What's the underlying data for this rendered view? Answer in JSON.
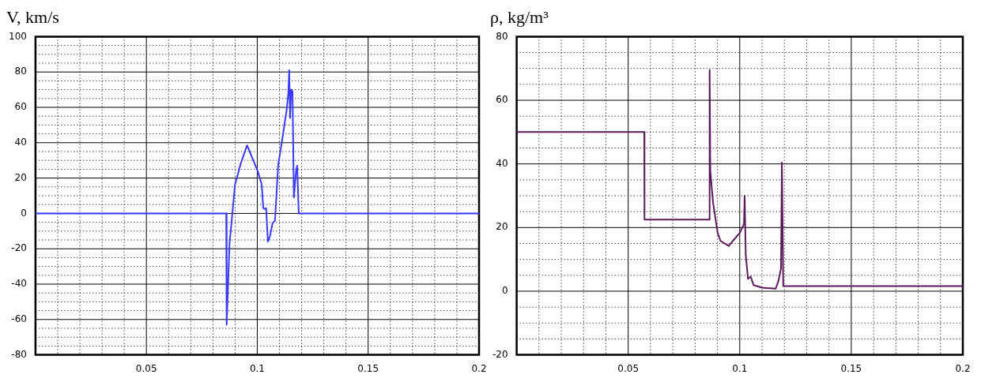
{
  "chart_data": [
    {
      "type": "line",
      "title": "V, km/s",
      "xlim": [
        0,
        0.2
      ],
      "ylim": [
        -80,
        100
      ],
      "grid": true,
      "marker": "none",
      "xticks": [
        {
          "value": 0.01,
          "label": null
        },
        {
          "value": 0.02,
          "label": null
        },
        {
          "value": 0.03,
          "label": null
        },
        {
          "value": 0.04,
          "label": null
        },
        0.05,
        {
          "value": 0.06,
          "label": null
        },
        {
          "value": 0.07,
          "label": null
        },
        {
          "value": 0.08,
          "label": null
        },
        {
          "value": 0.09,
          "label": null
        },
        0.1,
        {
          "value": 0.11,
          "label": null
        },
        {
          "value": 0.12,
          "label": null
        },
        {
          "value": 0.13,
          "label": null
        },
        {
          "value": 0.14,
          "label": null
        },
        0.15,
        {
          "value": 0.16,
          "label": null
        },
        {
          "value": 0.17,
          "label": null
        },
        {
          "value": 0.18,
          "label": null
        },
        {
          "value": 0.19,
          "label": null
        },
        0.2
      ],
      "yticks": [
        -80,
        {
          "value": -75,
          "label": null
        },
        {
          "value": -70,
          "label": null
        },
        {
          "value": -65,
          "label": null
        },
        -60,
        {
          "value": -55,
          "label": null
        },
        {
          "value": -50,
          "label": null
        },
        {
          "value": -45,
          "label": null
        },
        -40,
        {
          "value": -35,
          "label": null
        },
        {
          "value": -30,
          "label": null
        },
        {
          "value": -25,
          "label": null
        },
        -20,
        {
          "value": -15,
          "label": null
        },
        {
          "value": -10,
          "label": null
        },
        {
          "value": -5,
          "label": null
        },
        0,
        {
          "value": 5,
          "label": null
        },
        {
          "value": 10,
          "label": null
        },
        {
          "value": 15,
          "label": null
        },
        20,
        {
          "value": 25,
          "label": null
        },
        {
          "value": 30,
          "label": null
        },
        {
          "value": 35,
          "label": null
        },
        40,
        {
          "value": 45,
          "label": null
        },
        {
          "value": 50,
          "label": null
        },
        {
          "value": 55,
          "label": null
        },
        60,
        {
          "value": 65,
          "label": null
        },
        {
          "value": 70,
          "label": null
        },
        {
          "value": 75,
          "label": null
        },
        80,
        {
          "value": 85,
          "label": null
        },
        {
          "value": 90,
          "label": null
        },
        {
          "value": 95,
          "label": null
        },
        100
      ],
      "series": [
        {
          "color": "#3a3aff",
          "x": [
            0.0,
            0.086,
            0.0862,
            0.0875,
            0.09,
            0.0925,
            0.0954,
            0.1002,
            0.102,
            0.1027,
            0.1034,
            0.104,
            0.1048,
            0.1057,
            0.1069,
            0.108,
            0.1094,
            0.1114,
            0.1133,
            0.114,
            0.1144,
            0.1148,
            0.1153,
            0.1159,
            0.1165,
            0.1175,
            0.118,
            0.1187,
            0.2
          ],
          "values": [
            0,
            0,
            -63,
            -17,
            16.5,
            28,
            38.5,
            24,
            16.5,
            3,
            2.5,
            3,
            -16,
            -13,
            -5.6,
            -4,
            27,
            43,
            59,
            68,
            81,
            54,
            70,
            69,
            9,
            24,
            27,
            0,
            0
          ]
        }
      ]
    },
    {
      "type": "line",
      "title": "ρ, kg/m³",
      "xlim": [
        0,
        0.2
      ],
      "ylim": [
        -20,
        80
      ],
      "grid": true,
      "marker": "none",
      "xticks": [
        {
          "value": 0.01,
          "label": null
        },
        {
          "value": 0.02,
          "label": null
        },
        {
          "value": 0.03,
          "label": null
        },
        {
          "value": 0.04,
          "label": null
        },
        0.05,
        {
          "value": 0.06,
          "label": null
        },
        {
          "value": 0.07,
          "label": null
        },
        {
          "value": 0.08,
          "label": null
        },
        {
          "value": 0.09,
          "label": null
        },
        0.1,
        {
          "value": 0.11,
          "label": null
        },
        {
          "value": 0.12,
          "label": null
        },
        {
          "value": 0.13,
          "label": null
        },
        {
          "value": 0.14,
          "label": null
        },
        0.15,
        {
          "value": 0.16,
          "label": null
        },
        {
          "value": 0.17,
          "label": null
        },
        {
          "value": 0.18,
          "label": null
        },
        {
          "value": 0.19,
          "label": null
        },
        0.2
      ],
      "yticks": [
        -20,
        {
          "value": -15,
          "label": null
        },
        {
          "value": -10,
          "label": null
        },
        {
          "value": -5,
          "label": null
        },
        0,
        {
          "value": 5,
          "label": null
        },
        {
          "value": 10,
          "label": null
        },
        {
          "value": 15,
          "label": null
        },
        20,
        {
          "value": 25,
          "label": null
        },
        {
          "value": 30,
          "label": null
        },
        {
          "value": 35,
          "label": null
        },
        40,
        {
          "value": 45,
          "label": null
        },
        {
          "value": 50,
          "label": null
        },
        {
          "value": 55,
          "label": null
        },
        60,
        {
          "value": 65,
          "label": null
        },
        {
          "value": 70,
          "label": null
        },
        {
          "value": 75,
          "label": null
        },
        80
      ],
      "series": [
        {
          "color": "#5c1a5c",
          "x": [
            0.0,
            0.0572,
            0.0573,
            0.0863,
            0.0865,
            0.0868,
            0.088,
            0.0901,
            0.0914,
            0.0951,
            0.0969,
            0.1,
            0.1019,
            0.1022,
            0.1027,
            0.1037,
            0.1049,
            0.1062,
            0.11,
            0.1161,
            0.1173,
            0.1185,
            0.1189,
            0.1195,
            0.2
          ],
          "values": [
            50,
            50,
            22.5,
            22.5,
            69.5,
            38,
            28,
            18.3,
            15.8,
            14.2,
            15.8,
            18.3,
            21.1,
            30,
            11.3,
            3.9,
            4.6,
            1.9,
            1.1,
            0.8,
            3.1,
            7.2,
            40.4,
            1.6,
            1.6
          ]
        }
      ]
    }
  ]
}
